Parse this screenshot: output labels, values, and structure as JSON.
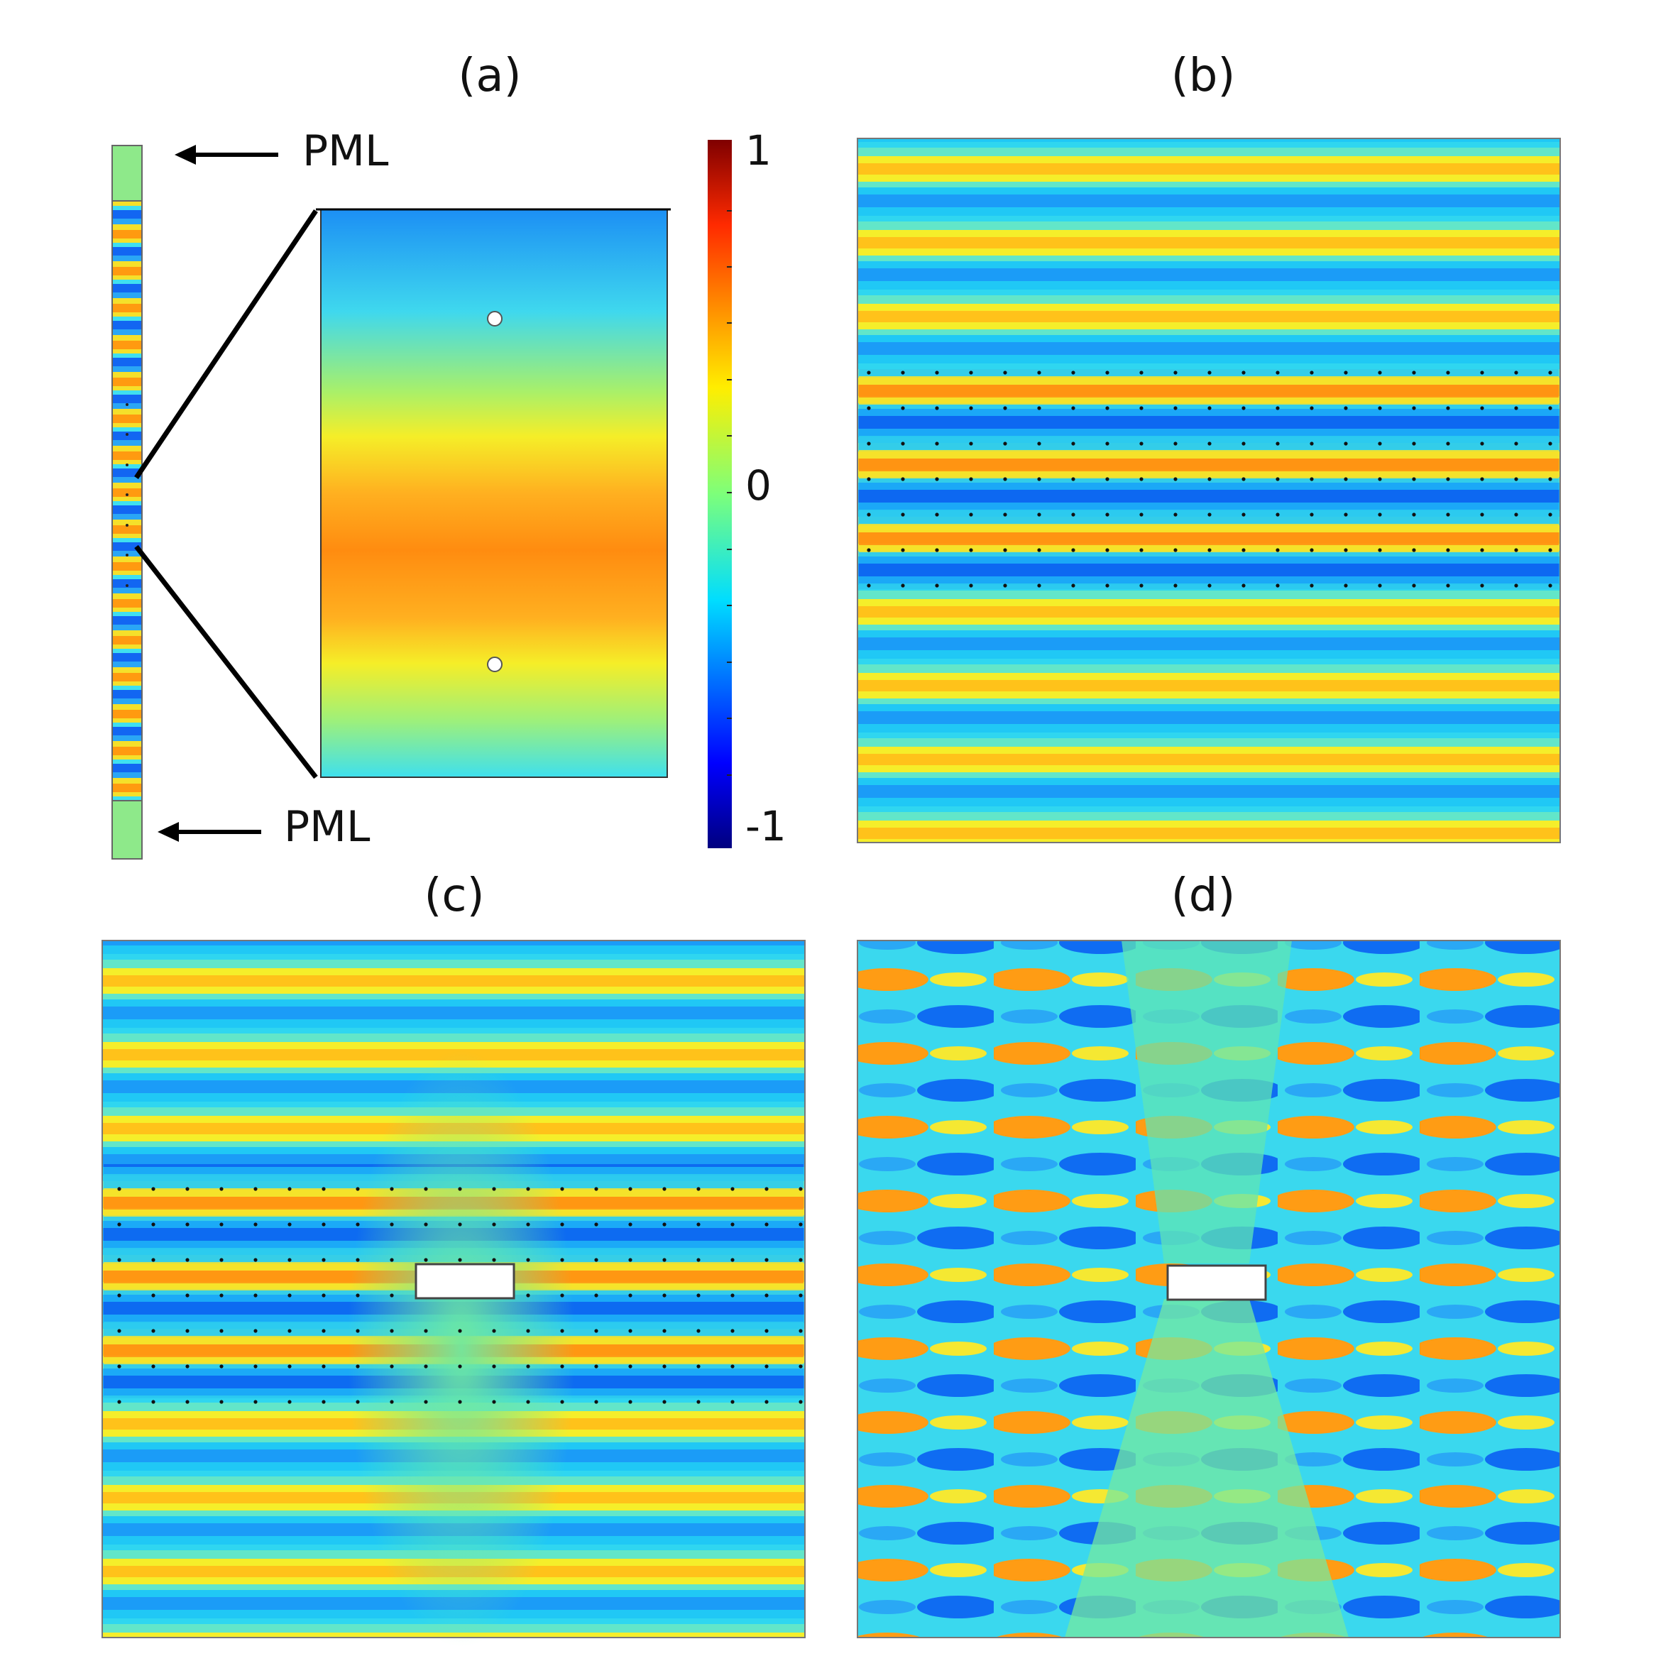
{
  "panels": {
    "a": {
      "title": "(a)"
    },
    "b": {
      "title": "(b)"
    },
    "c": {
      "title": "(c)"
    },
    "d": {
      "title": "(d)"
    }
  },
  "pml": {
    "top_label": "PML",
    "bottom_label": "PML"
  },
  "colorbar": {
    "max_label": "1",
    "mid_label": "0",
    "min_label": "-1",
    "colormap": "jet",
    "range": [
      -1,
      1
    ]
  },
  "colors": {
    "dark_red": "#7f0000",
    "orange": "#ff8a00",
    "yellow": "#ffee00",
    "cyan": "#00e5ff",
    "blue": "#0070ff",
    "dark_blue": "#00007f",
    "pml_green": "#8ee98a"
  }
}
